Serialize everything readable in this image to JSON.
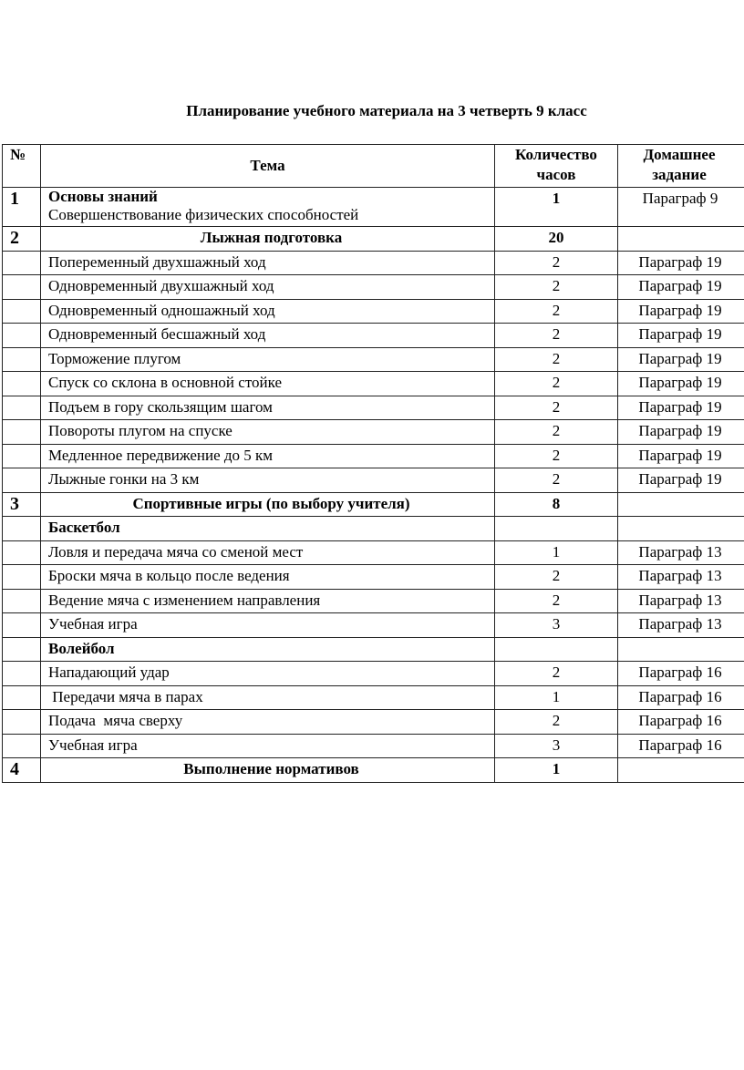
{
  "title": "Планирование учебного материала на 3 четверть 9 класс",
  "headers": {
    "num": "№",
    "theme": "Тема",
    "hours": "Количество часов",
    "homework": "Домашнее задание"
  },
  "rows": [
    {
      "num": "1",
      "theme": "Основы знаний",
      "subtheme": "Совершенствование физических способностей",
      "hours": "1",
      "homework": "Параграф 9",
      "kind": "section-left"
    },
    {
      "num": "2",
      "theme": "Лыжная подготовка",
      "hours": "20",
      "homework": "",
      "kind": "section"
    },
    {
      "num": "",
      "theme": "Попеременный двухшажный ход",
      "hours": "2",
      "homework": "Параграф 19"
    },
    {
      "num": "",
      "theme": "Одновременный двухшажный ход",
      "hours": "2",
      "homework": "Параграф 19"
    },
    {
      "num": "",
      "theme": "Одновременный одношажный ход",
      "hours": "2",
      "homework": "Параграф 19"
    },
    {
      "num": "",
      "theme": "Одновременный бесшажный ход",
      "hours": "2",
      "homework": "Параграф 19"
    },
    {
      "num": "",
      "theme": "Торможение плугом",
      "hours": "2",
      "homework": "Параграф 19"
    },
    {
      "num": "",
      "theme": "Спуск со склона в основной стойке",
      "hours": "2",
      "homework": "Параграф 19"
    },
    {
      "num": "",
      "theme": "Подъем в гору скользящим шагом",
      "hours": "2",
      "homework": "Параграф 19"
    },
    {
      "num": "",
      "theme": "Повороты плугом на спуске",
      "hours": "2",
      "homework": "Параграф 19"
    },
    {
      "num": "",
      "theme": "Медленное передвижение до 5 км",
      "hours": "2",
      "homework": "Параграф 19"
    },
    {
      "num": "",
      "theme": "Лыжные гонки на 3 км",
      "hours": "2",
      "homework": "Параграф 19"
    },
    {
      "num": "3",
      "theme": "Спортивные игры (по выбору учителя)",
      "hours": "8",
      "homework": "",
      "kind": "section"
    },
    {
      "num": "",
      "theme": "Баскетбол",
      "hours": "",
      "homework": "",
      "kind": "sub"
    },
    {
      "num": "",
      "theme": "Ловля и передача мяча со сменой мест",
      "hours": "1",
      "homework": "Параграф 13"
    },
    {
      "num": "",
      "theme": "Броски мяча в кольцо после ведения",
      "hours": "2",
      "homework": "Параграф 13"
    },
    {
      "num": "",
      "theme": "Ведение мяча с изменением направления",
      "hours": "2",
      "homework": "Параграф 13"
    },
    {
      "num": "",
      "theme": "Учебная игра",
      "hours": "3",
      "homework": "Параграф 13"
    },
    {
      "num": "",
      "theme": "Волейбол",
      "hours": "",
      "homework": "",
      "kind": "sub"
    },
    {
      "num": "",
      "theme": "Нападающий удар",
      "hours": "2",
      "homework": "Параграф 16"
    },
    {
      "num": "",
      "theme": " Передачи мяча в парах",
      "hours": "1",
      "homework": "Параграф 16"
    },
    {
      "num": "",
      "theme": "Подача  мяча сверху",
      "hours": "2",
      "homework": "Параграф 16"
    },
    {
      "num": "",
      "theme": "Учебная игра",
      "hours": "3",
      "homework": "Параграф 16"
    },
    {
      "num": "4",
      "theme": "Выполнение нормативов",
      "hours": "1",
      "homework": "",
      "kind": "section"
    }
  ]
}
